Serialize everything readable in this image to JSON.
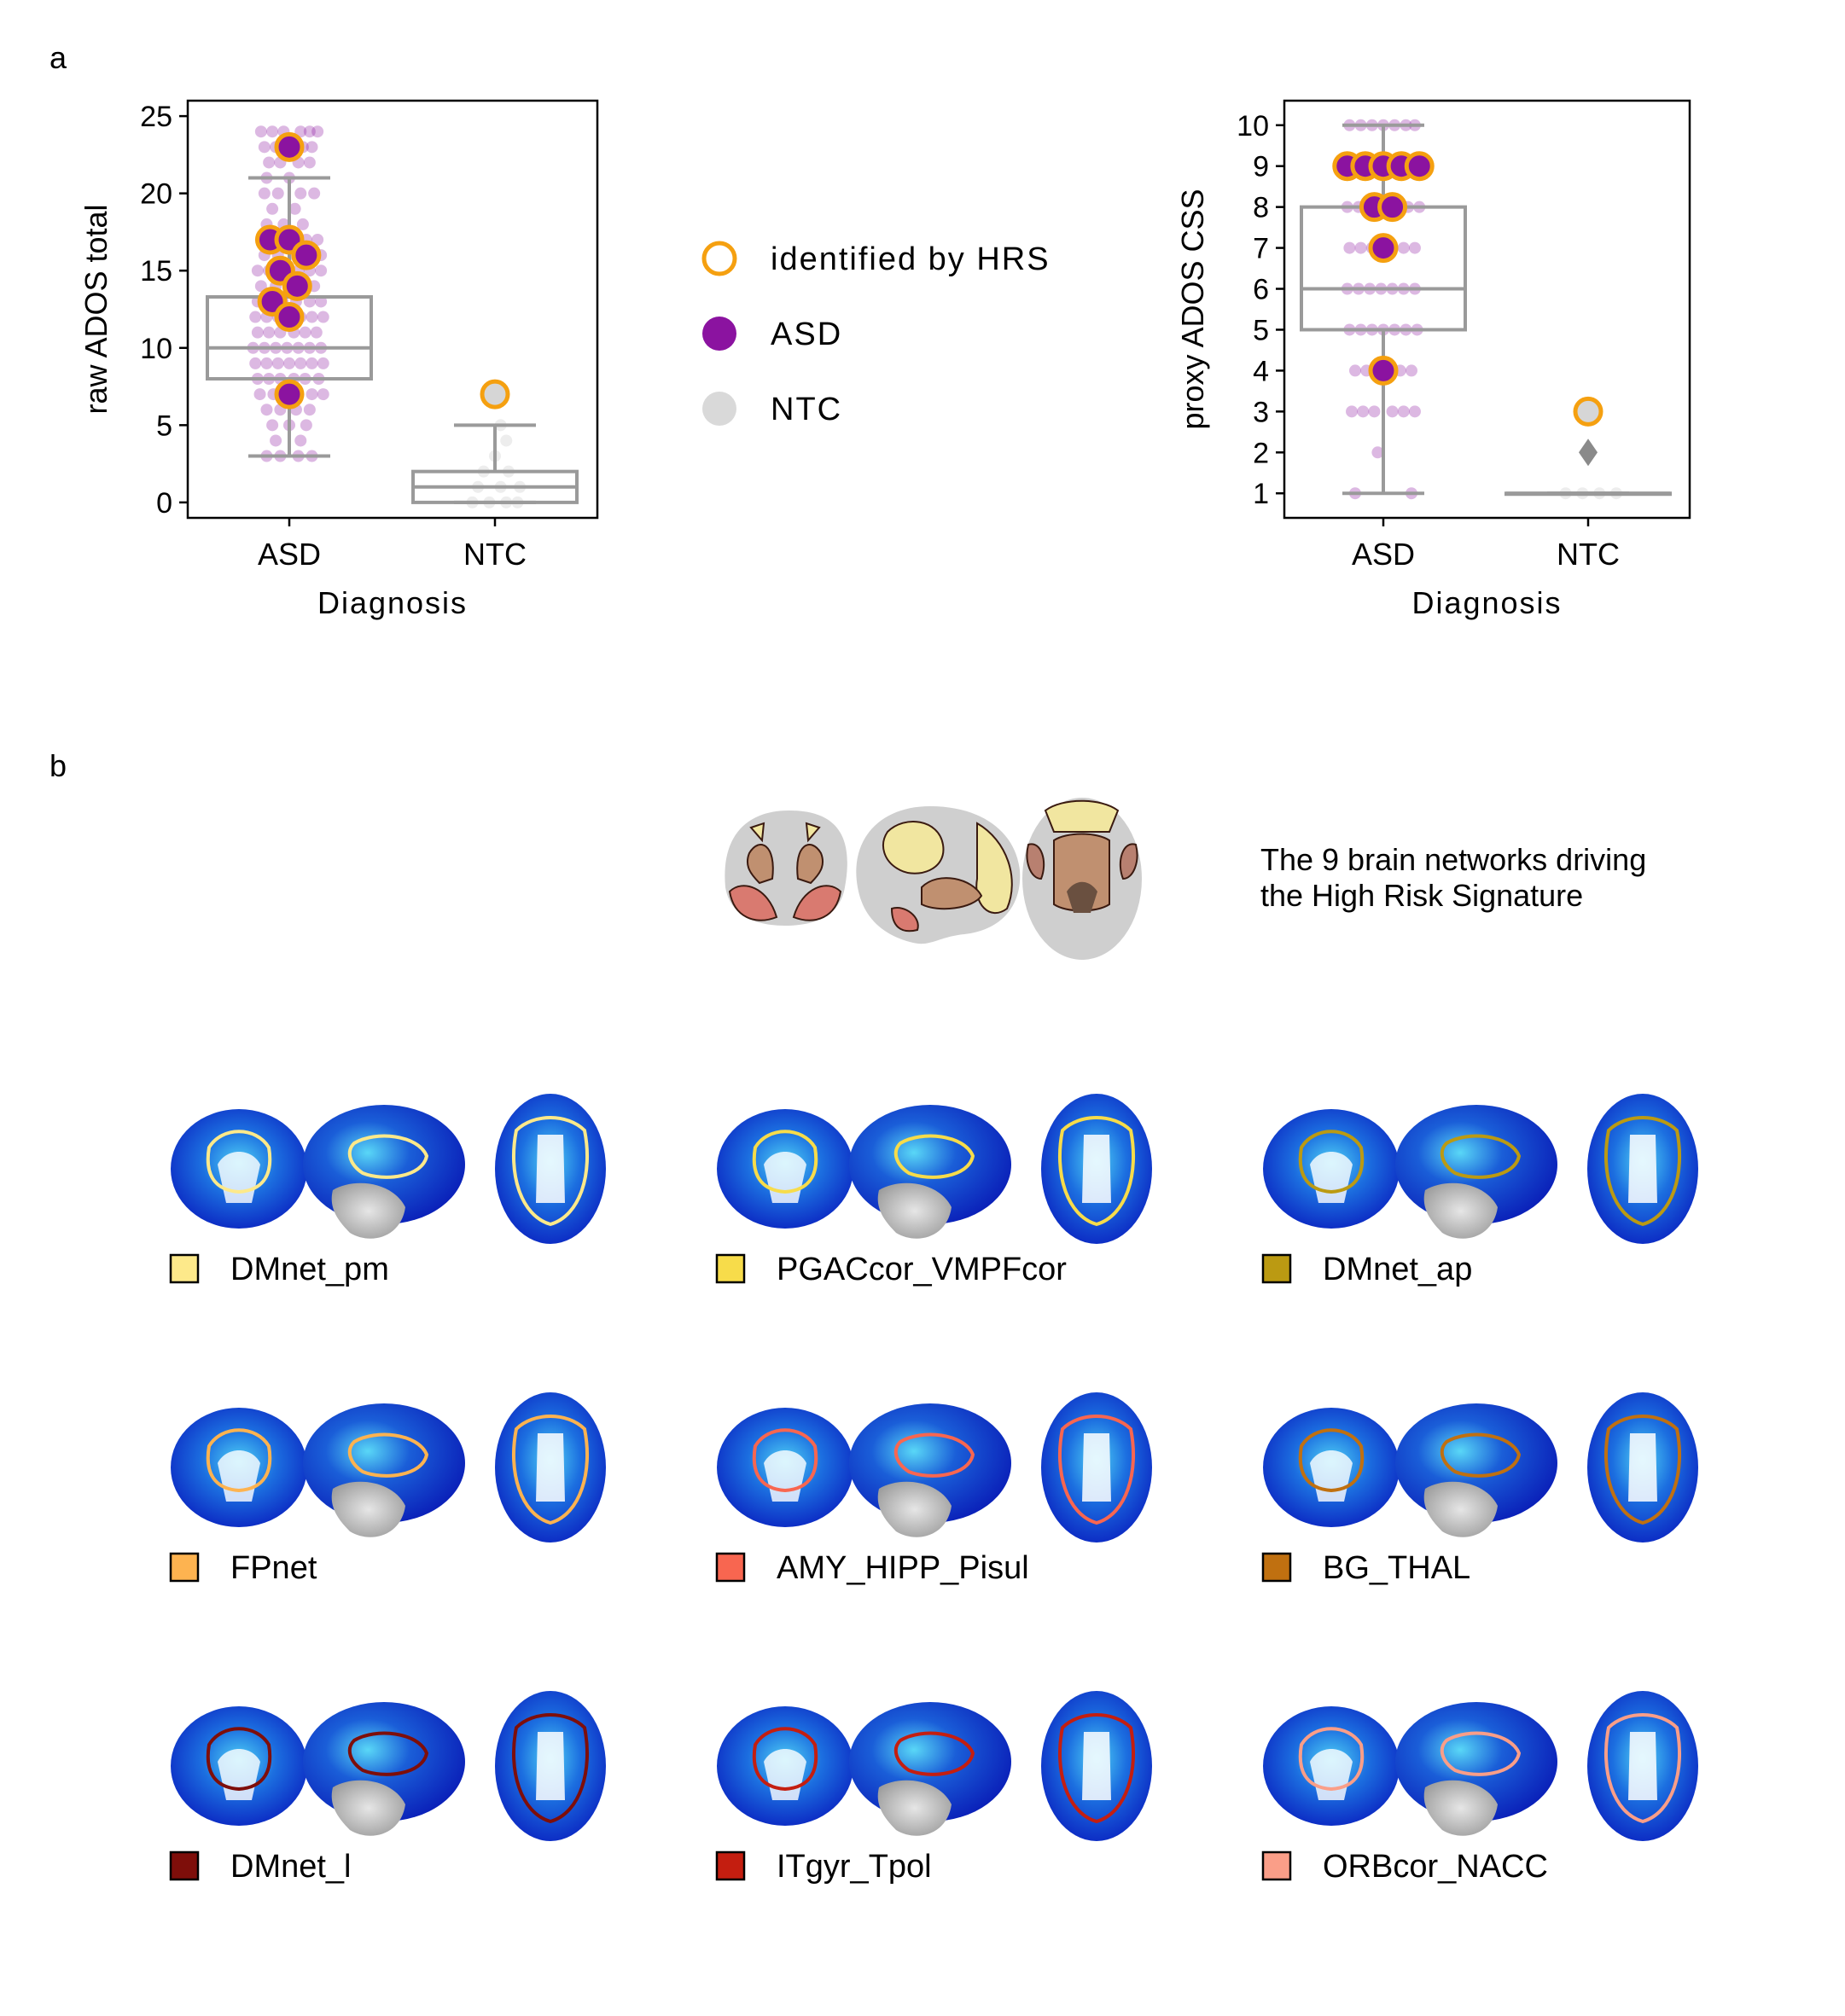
{
  "panel_labels": {
    "a": "a",
    "b": "b"
  },
  "chart_data": [
    {
      "type": "box-strip",
      "ylabel": "raw  ADOS total",
      "xlabel": "Diagnosis",
      "categories": [
        "ASD",
        "NTC"
      ],
      "ylim": [
        -1,
        26
      ],
      "yticks": [
        0,
        5,
        10,
        15,
        20,
        25
      ],
      "grid": false,
      "boxes": [
        {
          "category": "ASD",
          "q1": 8,
          "median": 10,
          "q3": 13.3,
          "whisker_low": 3,
          "whisker_high": 21,
          "outliers": [
            23
          ]
        },
        {
          "category": "NTC",
          "q1": 0,
          "median": 1,
          "q3": 2,
          "whisker_low": 0,
          "whisker_high": 5,
          "outliers": []
        }
      ],
      "strip_points": {
        "ASD": [
          [
            -0.25,
            24
          ],
          [
            -0.15,
            24
          ],
          [
            -0.05,
            24
          ],
          [
            0.1,
            24
          ],
          [
            0.18,
            24
          ],
          [
            0.25,
            24
          ],
          [
            -0.22,
            23
          ],
          [
            -0.12,
            23
          ],
          [
            0.12,
            23
          ],
          [
            0.2,
            23
          ],
          [
            -0.18,
            22
          ],
          [
            -0.08,
            22
          ],
          [
            0.08,
            22
          ],
          [
            0.18,
            22
          ],
          [
            0.0,
            21
          ],
          [
            -0.2,
            21
          ],
          [
            -0.1,
            20
          ],
          [
            0.1,
            20
          ],
          [
            0.22,
            20
          ],
          [
            -0.22,
            20
          ],
          [
            -0.15,
            19
          ],
          [
            0.05,
            19
          ],
          [
            -0.2,
            18
          ],
          [
            -0.05,
            18
          ],
          [
            0.12,
            18
          ],
          [
            -0.25,
            17
          ],
          [
            -0.12,
            17
          ],
          [
            0.0,
            17
          ],
          [
            0.15,
            17
          ],
          [
            0.25,
            17
          ],
          [
            -0.22,
            16
          ],
          [
            -0.1,
            16
          ],
          [
            0.05,
            16
          ],
          [
            0.15,
            16
          ],
          [
            0.28,
            16
          ],
          [
            -0.28,
            15
          ],
          [
            -0.18,
            15
          ],
          [
            -0.05,
            15
          ],
          [
            0.08,
            15
          ],
          [
            0.18,
            15
          ],
          [
            0.28,
            15
          ],
          [
            -0.25,
            14
          ],
          [
            -0.12,
            14
          ],
          [
            0.0,
            14
          ],
          [
            0.12,
            14
          ],
          [
            0.22,
            14
          ],
          [
            -0.28,
            13
          ],
          [
            -0.18,
            13
          ],
          [
            -0.06,
            13
          ],
          [
            0.06,
            13
          ],
          [
            0.18,
            13
          ],
          [
            0.28,
            13
          ],
          [
            -0.3,
            12
          ],
          [
            -0.2,
            12
          ],
          [
            -0.1,
            12
          ],
          [
            0.0,
            12
          ],
          [
            0.1,
            12
          ],
          [
            0.2,
            12
          ],
          [
            0.3,
            12
          ],
          [
            -0.28,
            11
          ],
          [
            -0.18,
            11
          ],
          [
            -0.08,
            11
          ],
          [
            0.04,
            11
          ],
          [
            0.14,
            11
          ],
          [
            0.24,
            11
          ],
          [
            -0.32,
            10
          ],
          [
            -0.22,
            10
          ],
          [
            -0.12,
            10
          ],
          [
            -0.02,
            10
          ],
          [
            0.08,
            10
          ],
          [
            0.18,
            10
          ],
          [
            0.28,
            10
          ],
          [
            -0.3,
            9
          ],
          [
            -0.2,
            9
          ],
          [
            -0.1,
            9
          ],
          [
            0.0,
            9
          ],
          [
            0.1,
            9
          ],
          [
            0.2,
            9
          ],
          [
            0.3,
            9
          ],
          [
            -0.28,
            8
          ],
          [
            -0.18,
            8
          ],
          [
            -0.08,
            8
          ],
          [
            0.04,
            8
          ],
          [
            0.14,
            8
          ],
          [
            0.26,
            8
          ],
          [
            -0.26,
            7
          ],
          [
            -0.14,
            7
          ],
          [
            -0.04,
            7
          ],
          [
            0.08,
            7
          ],
          [
            0.2,
            7
          ],
          [
            0.3,
            7
          ],
          [
            -0.2,
            6
          ],
          [
            -0.08,
            6
          ],
          [
            0.06,
            6
          ],
          [
            0.18,
            6
          ],
          [
            -0.15,
            5
          ],
          [
            0.0,
            5
          ],
          [
            0.15,
            5
          ],
          [
            -0.12,
            4
          ],
          [
            0.1,
            4
          ],
          [
            -0.2,
            3
          ],
          [
            -0.08,
            3
          ],
          [
            0.08,
            3
          ],
          [
            0.2,
            3
          ]
        ],
        "NTC": [
          [
            -0.2,
            0
          ],
          [
            -0.05,
            0
          ],
          [
            0.1,
            0
          ],
          [
            0.2,
            0
          ],
          [
            -0.15,
            1
          ],
          [
            0.05,
            1
          ],
          [
            0.22,
            1
          ],
          [
            -0.1,
            2
          ],
          [
            0.12,
            2
          ],
          [
            0.0,
            3
          ],
          [
            0.1,
            4
          ],
          [
            0.05,
            5
          ]
        ]
      },
      "highlighted": [
        [
          0.0,
          23
        ],
        [
          -0.17,
          17
        ],
        [
          0.0,
          17
        ],
        [
          0.15,
          16
        ],
        [
          -0.08,
          15
        ],
        [
          0.07,
          14
        ],
        [
          -0.15,
          13
        ],
        [
          0.0,
          12
        ],
        [
          0.0,
          7
        ],
        {
          "cat": "NTC",
          "x": 0.0,
          "y": 7
        }
      ]
    },
    {
      "type": "box-strip",
      "ylabel": "proxy  ADOS CSS",
      "xlabel": "Diagnosis",
      "categories": [
        "ASD",
        "NTC"
      ],
      "ylim": [
        0.4,
        10.6
      ],
      "yticks": [
        1,
        2,
        3,
        4,
        5,
        6,
        7,
        8,
        9,
        10
      ],
      "grid": false,
      "boxes": [
        {
          "category": "ASD",
          "q1": 5,
          "median": 6,
          "q3": 8,
          "whisker_low": 1,
          "whisker_high": 10,
          "outliers": []
        },
        {
          "category": "NTC",
          "q1": 1,
          "median": 1,
          "q3": 1,
          "whisker_low": 1,
          "whisker_high": 1,
          "outliers": [
            2
          ]
        }
      ],
      "strip_points": {
        "ASD": [
          [
            -0.3,
            10
          ],
          [
            -0.2,
            10
          ],
          [
            -0.1,
            10
          ],
          [
            0.0,
            10
          ],
          [
            0.1,
            10
          ],
          [
            0.2,
            10
          ],
          [
            0.28,
            10
          ],
          [
            -0.3,
            9
          ],
          [
            -0.15,
            9
          ],
          [
            0.15,
            9
          ],
          [
            0.3,
            9
          ],
          [
            -0.32,
            8
          ],
          [
            -0.22,
            8
          ],
          [
            -0.12,
            8
          ],
          [
            0.12,
            8
          ],
          [
            0.22,
            8
          ],
          [
            0.32,
            8
          ],
          [
            -0.3,
            7
          ],
          [
            -0.2,
            7
          ],
          [
            -0.1,
            7
          ],
          [
            0.08,
            7
          ],
          [
            0.18,
            7
          ],
          [
            0.28,
            7
          ],
          [
            -0.32,
            6
          ],
          [
            -0.22,
            6
          ],
          [
            -0.12,
            6
          ],
          [
            -0.02,
            6
          ],
          [
            0.08,
            6
          ],
          [
            0.18,
            6
          ],
          [
            0.28,
            6
          ],
          [
            -0.3,
            5
          ],
          [
            -0.2,
            5
          ],
          [
            -0.1,
            5
          ],
          [
            0.0,
            5
          ],
          [
            0.1,
            5
          ],
          [
            0.2,
            5
          ],
          [
            0.3,
            5
          ],
          [
            -0.25,
            4
          ],
          [
            -0.15,
            4
          ],
          [
            0.15,
            4
          ],
          [
            0.25,
            4
          ],
          [
            -0.28,
            3
          ],
          [
            -0.18,
            3
          ],
          [
            -0.08,
            3
          ],
          [
            0.08,
            3
          ],
          [
            0.18,
            3
          ],
          [
            0.28,
            3
          ],
          [
            -0.05,
            2
          ],
          [
            -0.25,
            1
          ],
          [
            0.25,
            1
          ]
        ],
        "NTC": [
          [
            -0.2,
            1
          ],
          [
            -0.05,
            1
          ],
          [
            0.1,
            1
          ],
          [
            0.25,
            1
          ]
        ]
      },
      "highlighted": [
        [
          -0.32,
          9
        ],
        [
          -0.16,
          9
        ],
        [
          0.0,
          9
        ],
        [
          0.16,
          9
        ],
        [
          0.32,
          9
        ],
        [
          -0.08,
          8
        ],
        [
          0.08,
          8
        ],
        [
          0.0,
          7
        ],
        [
          0.0,
          4
        ],
        {
          "cat": "NTC",
          "x": 0.0,
          "y": 3
        }
      ]
    }
  ],
  "legend": {
    "items": [
      {
        "label": "identified  by  HRS",
        "marker": "ring",
        "color": "#f5a010"
      },
      {
        "label": "ASD",
        "marker": "dot",
        "color": "#8b13a0"
      },
      {
        "label": "NTC",
        "marker": "dot",
        "color": "#d9d9d9"
      }
    ]
  },
  "overview_title": [
    "The 9 brain networks driving",
    "the High Risk Signature"
  ],
  "networks": [
    {
      "label": "DMnet_pm",
      "color": "#fde98a"
    },
    {
      "label": "PGACcor_VMPFcor",
      "color": "#f7dc4a"
    },
    {
      "label": "DMnet_ap",
      "color": "#bb9a12"
    },
    {
      "label": "FPnet",
      "color": "#fdb350"
    },
    {
      "label": "AMY_HIPP_Pisul",
      "color": "#f86650"
    },
    {
      "label": "BG_THAL",
      "color": "#c07010"
    },
    {
      "label": "DMnet_l",
      "color": "#7e0e0a"
    },
    {
      "label": "ITgyr_Tpol",
      "color": "#c41e10"
    },
    {
      "label": "ORBcor_NACC",
      "color": "#fa9e88"
    }
  ],
  "colors": {
    "asd_purple": "#8b13a0",
    "ntc_gray": "#d6d6d6",
    "hrs_orange": "#f5a010",
    "box_gray": "#9a9a9a",
    "brain_blue": "#1034d0",
    "brain_cyan": "#40c8f0",
    "brain_gray": "#c8c8c8"
  }
}
